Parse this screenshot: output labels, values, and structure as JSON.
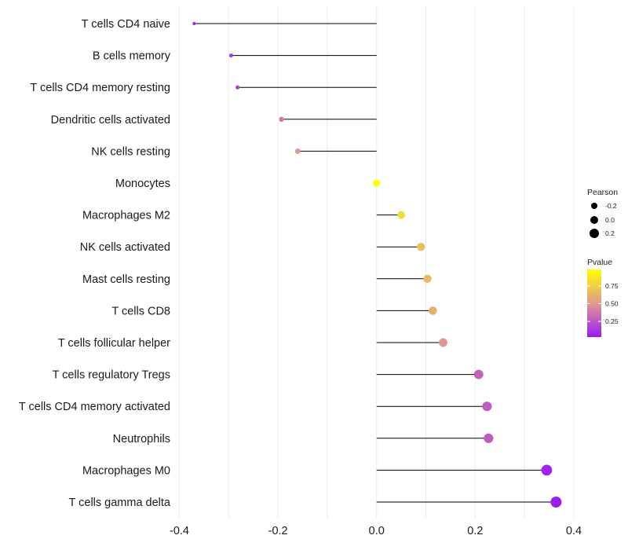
{
  "chart_data": {
    "type": "lollipop",
    "title": "",
    "xlabel": "",
    "ylabel": "",
    "xlim": [
      -0.4,
      0.4
    ],
    "xticks": [
      -0.4,
      -0.2,
      0.0,
      0.2,
      0.4
    ],
    "xtick_labels": [
      "-0.4",
      "-0.2",
      "0.0",
      "0.2",
      "0.4"
    ],
    "grid": true,
    "categories": [
      "T cells CD4 naive",
      "B cells memory",
      "T cells CD4 memory resting",
      "Dendritic cells activated",
      "NK cells resting",
      "Monocytes",
      "Macrophages M2",
      "NK cells activated",
      "Mast cells resting",
      "T cells CD8",
      "T cells follicular helper",
      "T cells regulatory  Tregs",
      "T cells CD4 memory activated",
      "Neutrophils",
      "Macrophages M0",
      "T cells gamma delta"
    ],
    "pearson": [
      -0.37,
      -0.295,
      -0.282,
      -0.193,
      -0.16,
      0.0,
      0.05,
      0.09,
      0.103,
      0.114,
      0.135,
      0.207,
      0.224,
      0.227,
      0.345,
      0.364
    ],
    "pvalue": [
      0.05,
      0.12,
      0.15,
      0.38,
      0.5,
      0.98,
      0.82,
      0.68,
      0.65,
      0.6,
      0.5,
      0.3,
      0.28,
      0.27,
      0.05,
      0.03
    ],
    "legend": {
      "size_title": "Pearson",
      "size_values": [
        -0.2,
        0.0,
        0.2
      ],
      "size_labels": [
        "-0.2",
        "0.0",
        "0.2"
      ],
      "color_title": "Pvalue",
      "color_range": [
        0.03,
        0.98
      ],
      "color_values": [
        0.75,
        0.5,
        0.25
      ],
      "color_labels": [
        "0.75",
        "0.50",
        "0.25"
      ],
      "color_low": "#9b1cf0",
      "color_mid": "#e19a8f",
      "color_high": "#ffff00",
      "position": "right"
    }
  }
}
